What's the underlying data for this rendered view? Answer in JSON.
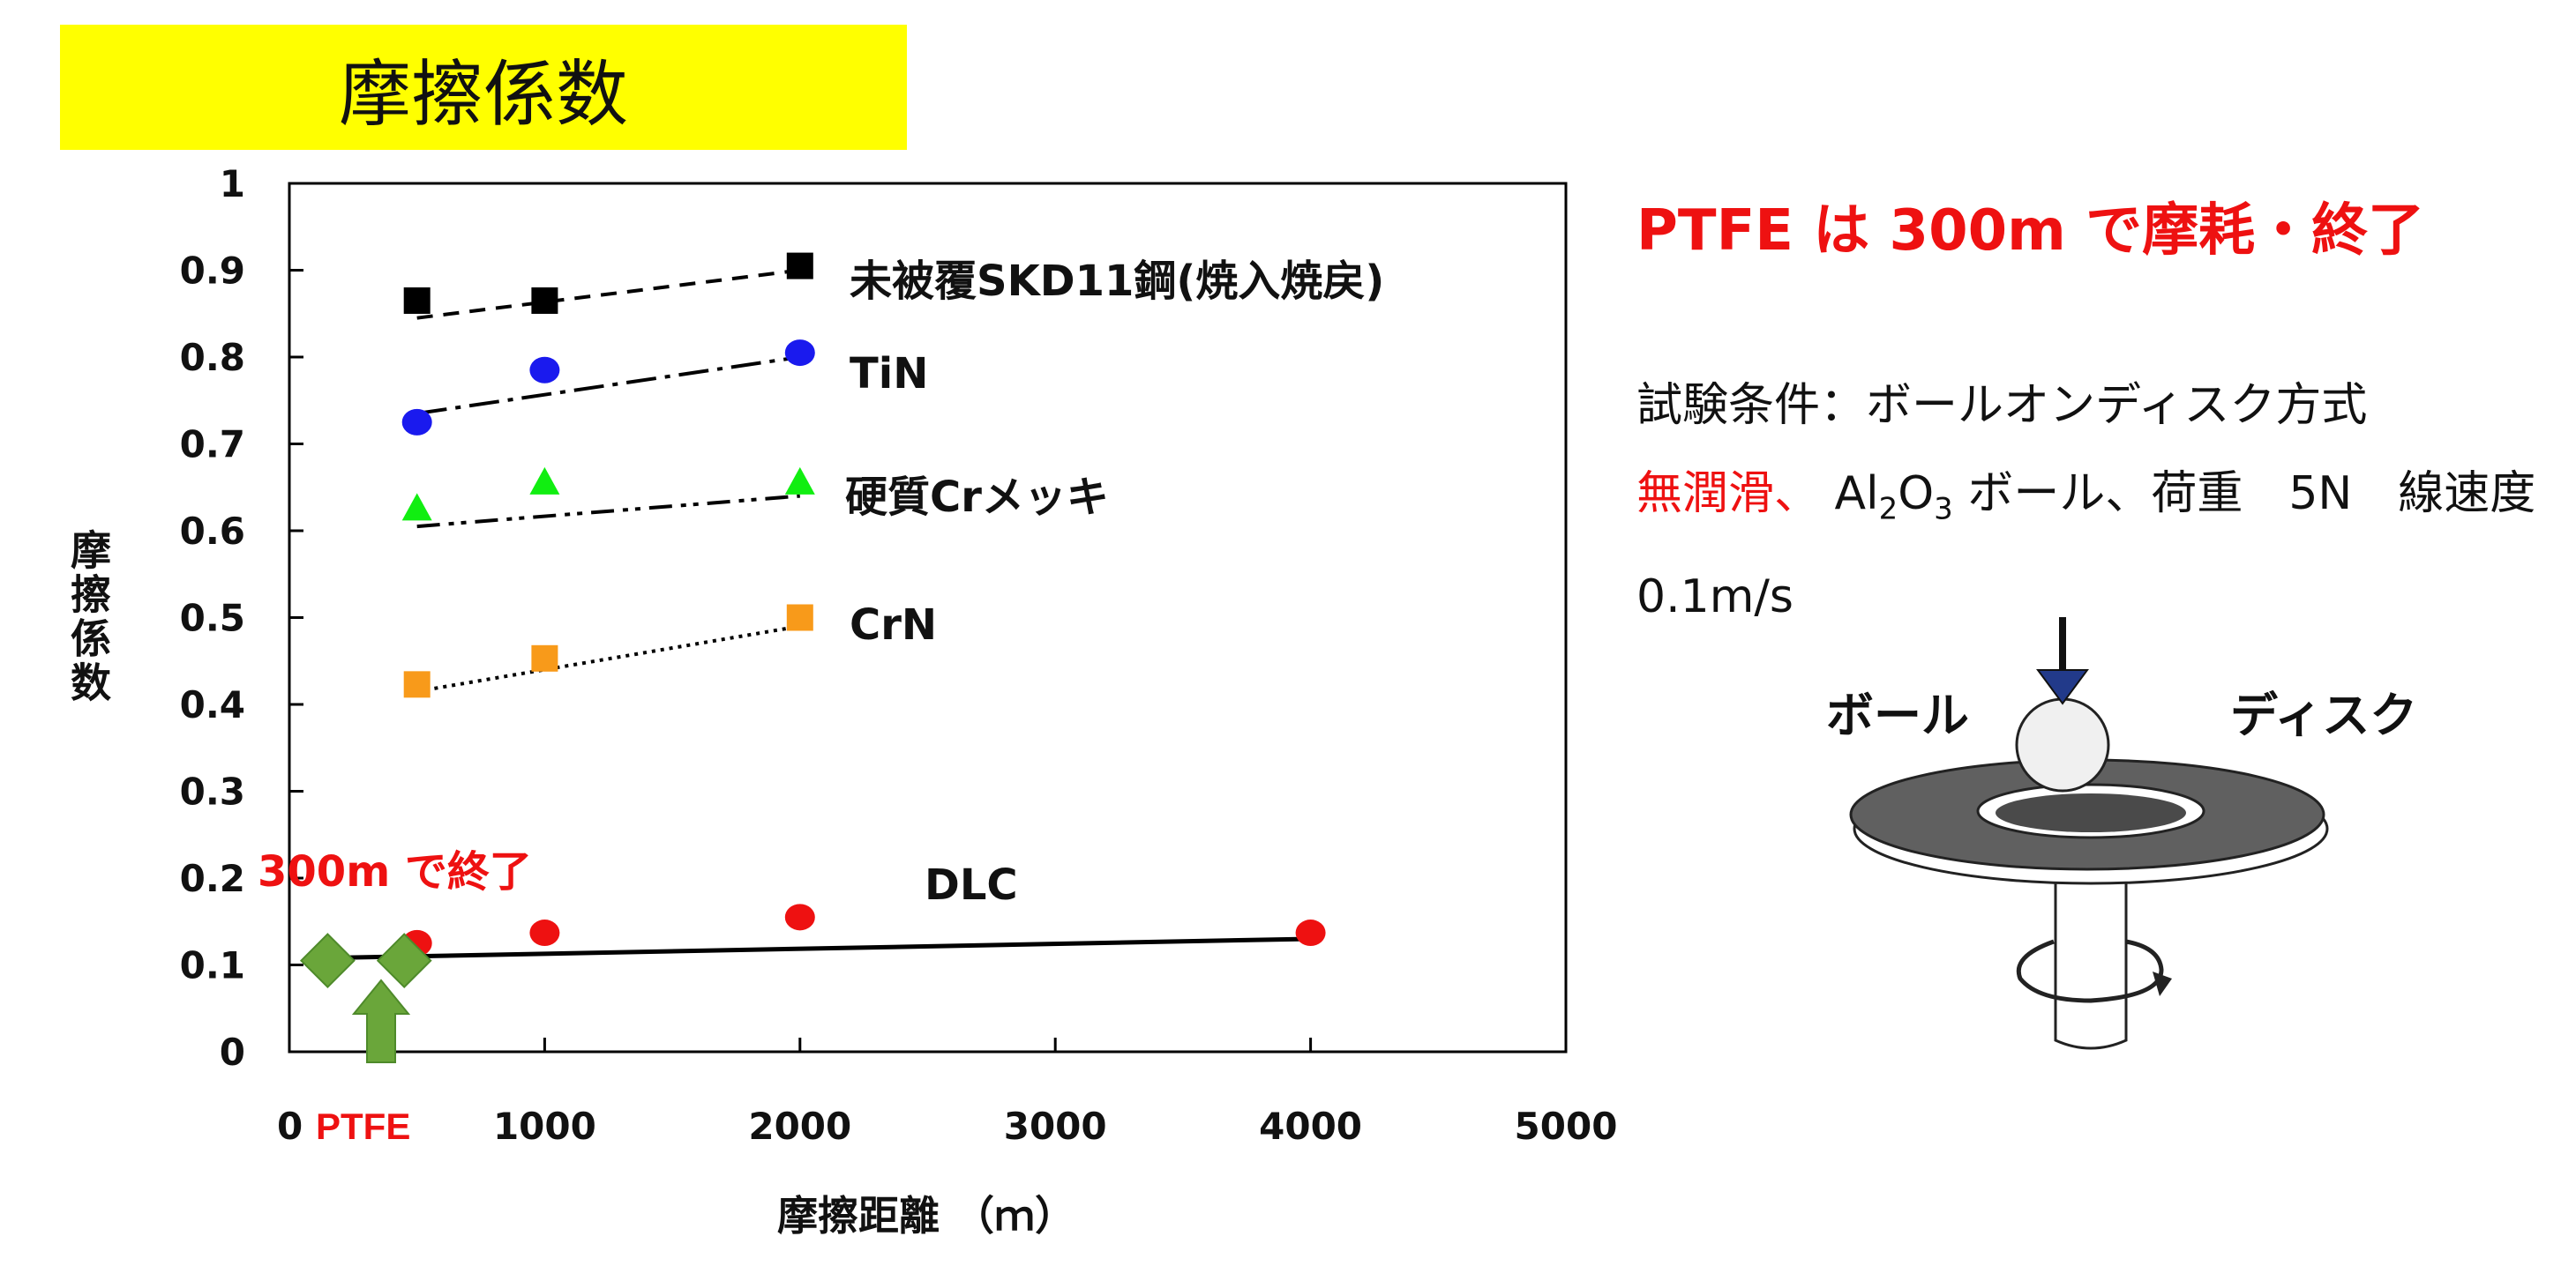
{
  "title": "摩擦係数",
  "chart_data": {
    "type": "scatter",
    "xlim": [
      0,
      5000
    ],
    "ylim": [
      0,
      1
    ],
    "x_ticks": [
      "0",
      "1000",
      "2000",
      "3000",
      "4000",
      "5000"
    ],
    "y_ticks": [
      "0",
      "0.1",
      "0.2",
      "0.3",
      "0.4",
      "0.5",
      "0.6",
      "0.7",
      "0.8",
      "0.9",
      "1"
    ],
    "xlabel": "摩擦距離 （ｍ）",
    "ylabel": "摩擦係数",
    "grid": false,
    "series": [
      {
        "name": "未被覆SKD11鋼(焼入焼戻)",
        "color": "#000000",
        "marker": "square",
        "x": [
          500,
          1000,
          2000
        ],
        "y": [
          0.865,
          0.865,
          0.905
        ],
        "fit": [
          0.845,
          0.9
        ],
        "line": "dashed"
      },
      {
        "name": "TiN",
        "color": "#1a1aee",
        "marker": "circle",
        "x": [
          500,
          1000,
          2000
        ],
        "y": [
          0.725,
          0.785,
          0.805
        ],
        "fit": [
          0.735,
          0.8
        ],
        "line": "dashdot"
      },
      {
        "name": "硬質Crメッキ",
        "color": "#11ee11",
        "marker": "triangle",
        "x": [
          500,
          1000,
          2000
        ],
        "y": [
          0.625,
          0.655,
          0.655
        ],
        "fit": [
          0.605,
          0.64
        ],
        "line": "dashdotdot"
      },
      {
        "name": "CrN",
        "color": "#f89a1a",
        "marker": "square",
        "x": [
          500,
          1000,
          2000
        ],
        "y": [
          0.423,
          0.453,
          0.5
        ],
        "fit": [
          0.415,
          0.49
        ],
        "line": "dotted"
      },
      {
        "name": "DLC",
        "color": "#ee1111",
        "marker": "circle",
        "x": [
          500,
          1000,
          2000,
          4000
        ],
        "y": [
          0.125,
          0.137,
          0.155,
          0.137
        ],
        "fit_x": [
          150,
          4000
        ],
        "fit": [
          0.108,
          0.13
        ],
        "line": "solid"
      },
      {
        "name": "PTFE",
        "color": "#6aa63a",
        "marker": "diamond",
        "x": [
          150,
          450
        ],
        "y": [
          0.105,
          0.105
        ]
      }
    ],
    "annotations": {
      "ptfe_end": "300m で終了",
      "ptfe_tick": "PTFE"
    }
  },
  "right_panel": {
    "headline": "PTFE は 300m で摩耗・終了",
    "conditions_line1": "試験条件：ボールオンディスク方式",
    "conditions_red": "無潤滑、",
    "al": "Al",
    "sub2": "2",
    "o": "O",
    "sub3": "3",
    "conditions_rest": " ボール、荷重　5N　線速度　0.1m/s"
  },
  "illustration": {
    "ball_label": "ボール",
    "disk_label": "ディスク"
  },
  "colors": {
    "banner": "#ffff00",
    "red": "#ee1111",
    "ptfe_green": "#6aa63a"
  }
}
